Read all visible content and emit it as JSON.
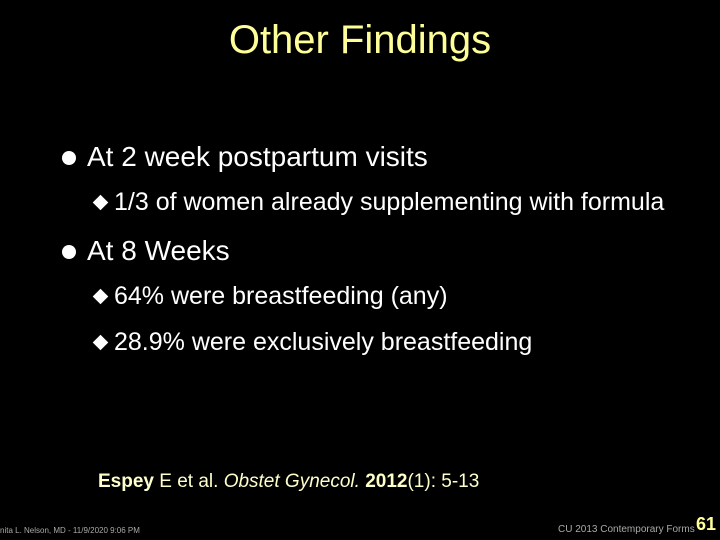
{
  "title": "Other Findings",
  "bullets": [
    {
      "text": "At 2 week postpartum visits",
      "sub": [
        "1/3 of women already supplementing with formula"
      ]
    },
    {
      "text": "At 8 Weeks",
      "sub": [
        "64% were breastfeeding (any)",
        "28.9% were exclusively breastfeeding"
      ]
    }
  ],
  "citation": {
    "author": "Espey",
    "rest": " E et al. ",
    "journal": "Obstet Gynecol.",
    "year": "2012",
    "issue": "(1): 5-13"
  },
  "footer": {
    "left": "nita L. Nelson, MD - 11/9/2020 9:06 PM",
    "right": "CU 2013 Contemporary Forms",
    "page": "61"
  }
}
